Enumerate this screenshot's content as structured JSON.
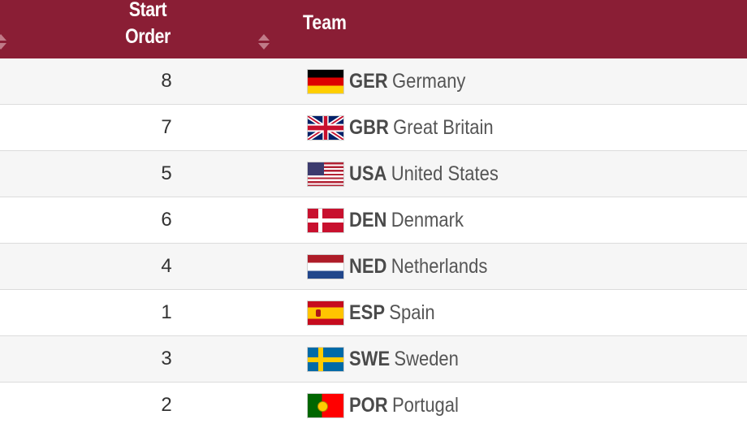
{
  "header": {
    "start_order_label": "Start\nOrder",
    "start_order_line1": "Start",
    "start_order_line2": "Order",
    "team_label": "Team"
  },
  "rows": [
    {
      "order": "8",
      "code": "GER",
      "name": "Germany",
      "flag_icon": "germany-flag-icon"
    },
    {
      "order": "7",
      "code": "GBR",
      "name": "Great Britain",
      "flag_icon": "great-britain-flag-icon"
    },
    {
      "order": "5",
      "code": "USA",
      "name": "United States",
      "flag_icon": "usa-flag-icon"
    },
    {
      "order": "6",
      "code": "DEN",
      "name": "Denmark",
      "flag_icon": "denmark-flag-icon"
    },
    {
      "order": "4",
      "code": "NED",
      "name": "Netherlands",
      "flag_icon": "netherlands-flag-icon"
    },
    {
      "order": "1",
      "code": "ESP",
      "name": "Spain",
      "flag_icon": "spain-flag-icon"
    },
    {
      "order": "3",
      "code": "SWE",
      "name": "Sweden",
      "flag_icon": "sweden-flag-icon"
    },
    {
      "order": "2",
      "code": "POR",
      "name": "Portugal",
      "flag_icon": "portugal-flag-icon"
    }
  ],
  "colors": {
    "header_bg": "#8a1e35",
    "header_text": "#ffffff",
    "row_alt_bg": "#f6f6f6"
  }
}
